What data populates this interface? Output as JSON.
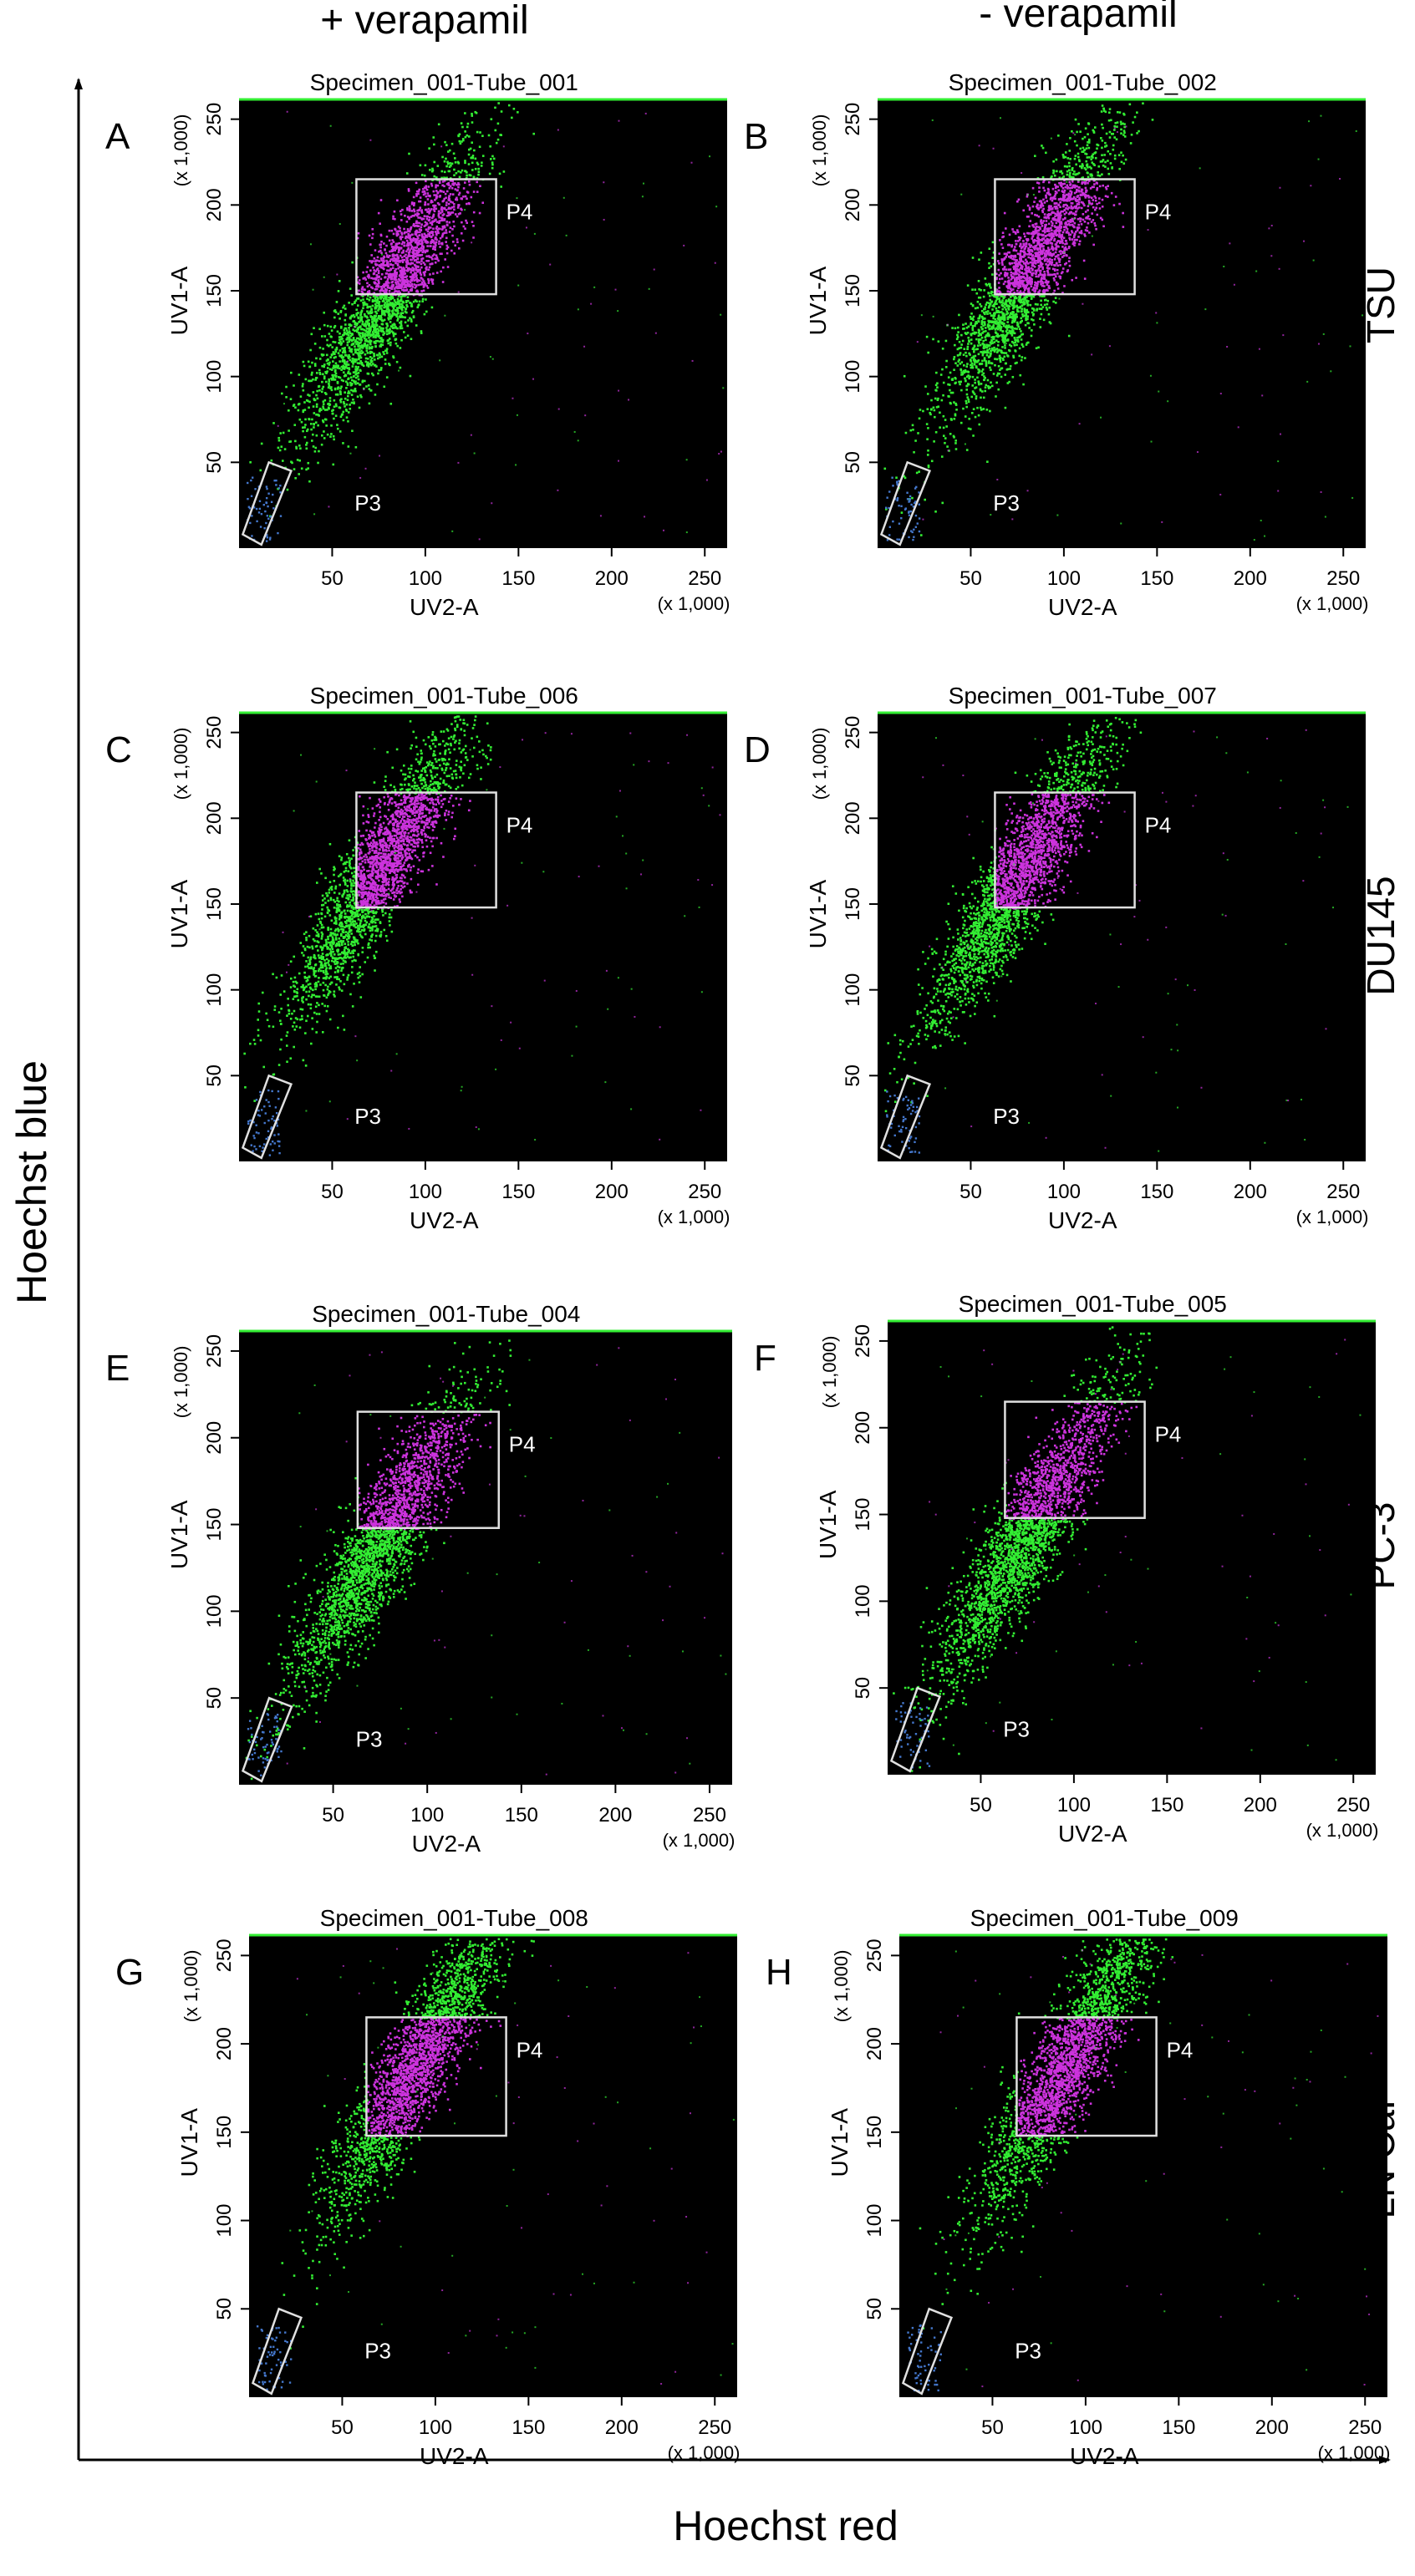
{
  "figure": {
    "column_headers": [
      "+ verapamil",
      "- verapamil"
    ],
    "row_labels": [
      "TSU",
      "DU145",
      "PC-3",
      "LN CaP"
    ],
    "y_axis_label": "Hoechst  blue",
    "x_axis_label": "Hoechst  red"
  },
  "colors": {
    "plot_background": "#000000",
    "events_green": "#33ee33",
    "events_magenta": "#cc33dd",
    "gate_stroke": "#e0e0e0",
    "sp_events": "#4477cc"
  },
  "chart_data": [
    {
      "type": "scatter",
      "panel": "A",
      "title": "Specimen_001-Tube_001",
      "xlabel": "UV2-A",
      "ylabel": "UV1-A",
      "x_scale": "(x 1,000)",
      "y_scale": "(x 1,000)",
      "xlim": [
        0,
        262
      ],
      "ylim": [
        0,
        262
      ],
      "x_ticks": [
        50,
        100,
        150,
        200,
        250
      ],
      "y_ticks": [
        50,
        100,
        150,
        200,
        250
      ],
      "gates": {
        "P4": {
          "x": [
            63,
            138
          ],
          "y": [
            148,
            215
          ]
        },
        "P3_label": "P3"
      },
      "population": {
        "center": [
          80,
          150
        ],
        "spread": "main diagonal band to ~[125,262]"
      }
    },
    {
      "type": "scatter",
      "panel": "B",
      "title": "Specimen_001-Tube_002",
      "xlabel": "UV2-A",
      "ylabel": "UV1-A",
      "x_scale": "(x 1,000)",
      "y_scale": "(x 1,000)",
      "xlim": [
        0,
        262
      ],
      "ylim": [
        0,
        262
      ],
      "x_ticks": [
        50,
        100,
        150,
        200,
        250
      ],
      "y_ticks": [
        50,
        100,
        150,
        200,
        250
      ],
      "gates": {
        "P4": {
          "x": [
            63,
            138
          ],
          "y": [
            148,
            215
          ]
        },
        "P3_label": "P3"
      },
      "population": {
        "center": [
          80,
          160
        ],
        "spread": "main diagonal band to ~[125,262]"
      }
    },
    {
      "type": "scatter",
      "panel": "C",
      "title": "Specimen_001-Tube_006",
      "xlabel": "UV2-A",
      "ylabel": "UV1-A",
      "x_scale": "(x 1,000)",
      "y_scale": "(x 1,000)",
      "xlim": [
        0,
        262
      ],
      "ylim": [
        0,
        262
      ],
      "x_ticks": [
        50,
        100,
        150,
        200,
        250
      ],
      "y_ticks": [
        50,
        100,
        150,
        200,
        250
      ],
      "gates": {
        "P4": {
          "x": [
            63,
            138
          ],
          "y": [
            148,
            215
          ]
        },
        "P3_label": "P3"
      },
      "population": {
        "center": [
          75,
          170
        ],
        "spread": "narrow diagonal band"
      }
    },
    {
      "type": "scatter",
      "panel": "D",
      "title": "Specimen_001-Tube_007",
      "xlabel": "UV2-A",
      "ylabel": "UV1-A",
      "x_scale": "(x 1,000)",
      "y_scale": "(x 1,000)",
      "xlim": [
        0,
        262
      ],
      "ylim": [
        0,
        262
      ],
      "x_ticks": [
        50,
        100,
        150,
        200,
        250
      ],
      "y_ticks": [
        50,
        100,
        150,
        200,
        250
      ],
      "gates": {
        "P4": {
          "x": [
            63,
            138
          ],
          "y": [
            148,
            215
          ]
        },
        "P3_label": "P3"
      },
      "population": {
        "center": [
          75,
          165
        ],
        "spread": "narrow diagonal band"
      }
    },
    {
      "type": "scatter",
      "panel": "E",
      "title": "Specimen_001-Tube_004",
      "xlabel": "UV2-A",
      "ylabel": "UV1-A",
      "x_scale": "(x 1,000)",
      "y_scale": "(x 1,000)",
      "xlim": [
        0,
        262
      ],
      "ylim": [
        0,
        262
      ],
      "x_ticks": [
        50,
        100,
        150,
        200,
        250
      ],
      "y_ticks": [
        50,
        100,
        150,
        200,
        250
      ],
      "gates": {
        "P4": {
          "x": [
            63,
            138
          ],
          "y": [
            148,
            215
          ]
        },
        "P3_label": "P3"
      },
      "population": {
        "center": [
          75,
          140
        ],
        "spread": "broad diagonal band"
      }
    },
    {
      "type": "scatter",
      "panel": "F",
      "title": "Specimen_001-Tube_005",
      "xlabel": "UV2-A",
      "ylabel": "UV1-A",
      "x_scale": "(x 1,000)",
      "y_scale": "(x 1,000)",
      "xlim": [
        0,
        262
      ],
      "ylim": [
        0,
        262
      ],
      "x_ticks": [
        50,
        100,
        150,
        200,
        250
      ],
      "y_ticks": [
        50,
        100,
        150,
        200,
        250
      ],
      "gates": {
        "P4": {
          "x": [
            63,
            138
          ],
          "y": [
            148,
            215
          ]
        },
        "P3_label": "P3"
      },
      "population": {
        "center": [
          75,
          140
        ],
        "spread": "broad diagonal band"
      }
    },
    {
      "type": "scatter",
      "panel": "G",
      "title": "Specimen_001-Tube_008",
      "xlabel": "UV2-A",
      "ylabel": "UV1-A",
      "x_scale": "(x 1,000)",
      "y_scale": "(x 1,000)",
      "xlim": [
        0,
        262
      ],
      "ylim": [
        0,
        262
      ],
      "x_ticks": [
        50,
        100,
        150,
        200,
        250
      ],
      "y_ticks": [
        50,
        100,
        150,
        200,
        250
      ],
      "gates": {
        "P4": {
          "x": [
            63,
            138
          ],
          "y": [
            148,
            215
          ]
        },
        "P3_label": "P3"
      },
      "population": {
        "center": [
          90,
          190
        ],
        "spread": "wide upper cluster"
      }
    },
    {
      "type": "scatter",
      "panel": "H",
      "title": "Specimen_001-Tube_009",
      "xlabel": "UV2-A",
      "ylabel": "UV1-A",
      "x_scale": "(x 1,000)",
      "y_scale": "(x 1,000)",
      "xlim": [
        0,
        262
      ],
      "ylim": [
        0,
        262
      ],
      "x_ticks": [
        50,
        100,
        150,
        200,
        250
      ],
      "y_ticks": [
        50,
        100,
        150,
        200,
        250
      ],
      "gates": {
        "P4": {
          "x": [
            63,
            138
          ],
          "y": [
            148,
            215
          ]
        },
        "P3_label": "P3"
      },
      "population": {
        "center": [
          90,
          190
        ],
        "spread": "wide upper cluster"
      }
    }
  ]
}
